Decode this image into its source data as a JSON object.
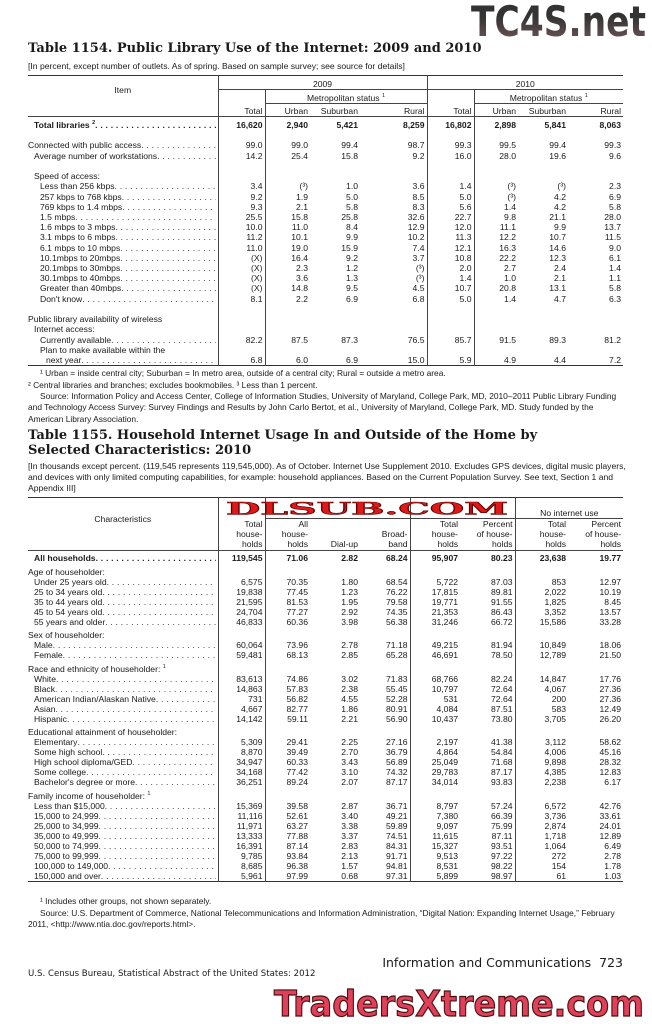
{
  "t1154": {
    "title": "Table 1154. Public Library Use of the Internet: 2009 and 2010",
    "note": "[In percent, except number of outlets. As of spring. Based on sample survey; see source for details]",
    "header": {
      "item": "Item",
      "y2009": "2009",
      "y2010": "2010",
      "metro": "Metropolitan status",
      "metro_sup": "1",
      "cols": [
        "Total",
        "Urban",
        "Suburban",
        "Rural",
        "Total",
        "Urban",
        "Suburban",
        "Rural"
      ]
    },
    "rows": [
      {
        "label": "Total libraries",
        "sup": "2",
        "bold": true,
        "indent": 1,
        "values": [
          "16,620",
          "2,940",
          "5,421",
          "8,259",
          "16,802",
          "2,898",
          "5,841",
          "8,063"
        ]
      },
      {
        "spacer": true
      },
      {
        "label": "Connected with public access",
        "indent": 0,
        "values": [
          "99.0",
          "99.0",
          "99.4",
          "98.7",
          "99.3",
          "99.5",
          "99.4",
          "99.3"
        ]
      },
      {
        "label": "Average number of workstations",
        "indent": 1,
        "values": [
          "14.2",
          "25.4",
          "15.8",
          "9.2",
          "16.0",
          "28.0",
          "19.6",
          "9.6"
        ]
      },
      {
        "spacer": true
      },
      {
        "label": "Speed of access:",
        "heading": true,
        "indent": 1
      },
      {
        "label": "Less than 256 kbps",
        "indent": 2,
        "values": [
          "3.4",
          "(³)",
          "1.0",
          "3.6",
          "1.4",
          "(³)",
          "(³)",
          "2.3"
        ]
      },
      {
        "label": "257 kbps to 768 kbps",
        "indent": 2,
        "values": [
          "9.2",
          "1.9",
          "5.0",
          "8.5",
          "5.0",
          "(³)",
          "4.2",
          "6.9"
        ]
      },
      {
        "label": "769 kbps to 1.4 mbps",
        "indent": 2,
        "values": [
          "9.3",
          "2.1",
          "5.8",
          "8.3",
          "5.6",
          "1.4",
          "4.2",
          "5.8"
        ]
      },
      {
        "label": "1.5 mbps",
        "indent": 2,
        "values": [
          "25.5",
          "15.8",
          "25.8",
          "32.6",
          "22.7",
          "9.8",
          "21.1",
          "28.0"
        ]
      },
      {
        "label": "1.6 mbps to 3 mbps",
        "indent": 2,
        "values": [
          "10.0",
          "11.0",
          "8.4",
          "12.9",
          "12.0",
          "11.1",
          "9.9",
          "13.7"
        ]
      },
      {
        "label": "3.1 mbps to 6 mbps",
        "indent": 2,
        "values": [
          "11.2",
          "10.1",
          "9.9",
          "10.2",
          "11.3",
          "12.2",
          "10.7",
          "11.5"
        ]
      },
      {
        "label": "6.1 mbps to 10 mbps",
        "indent": 2,
        "values": [
          "11.0",
          "19.0",
          "15.9",
          "7.4",
          "12.1",
          "16.3",
          "14.6",
          "9.0"
        ]
      },
      {
        "label": "10.1mbps to 20mbps",
        "indent": 2,
        "values": [
          "(X)",
          "16.4",
          "9.2",
          "3.7",
          "10.8",
          "22.2",
          "12.3",
          "6.1"
        ]
      },
      {
        "label": "20.1mbps to 30mbps",
        "indent": 2,
        "values": [
          "(X)",
          "2.3",
          "1.2",
          "(³)",
          "2.0",
          "2.7",
          "2.4",
          "1.4"
        ]
      },
      {
        "label": "30.1mbps to 40mbps",
        "indent": 2,
        "values": [
          "(X)",
          "3.6",
          "1.3",
          "(³)",
          "1.4",
          "1.0",
          "2.1",
          "1.1"
        ]
      },
      {
        "label": "Greater than 40mbps",
        "indent": 2,
        "values": [
          "(X)",
          "14.8",
          "9.5",
          "4.5",
          "10.7",
          "20.8",
          "13.1",
          "5.8"
        ]
      },
      {
        "label": "Don't know",
        "indent": 2,
        "values": [
          "8.1",
          "2.2",
          "6.9",
          "6.8",
          "5.0",
          "1.4",
          "4.7",
          "6.3"
        ]
      },
      {
        "spacer": true
      },
      {
        "label": "Public library availability of wireless",
        "heading": true,
        "indent": 0
      },
      {
        "label": "Internet access:",
        "heading": true,
        "indent": 1
      },
      {
        "label": "Currently available",
        "indent": 2,
        "values": [
          "82.2",
          "87.5",
          "87.3",
          "76.5",
          "85.7",
          "91.5",
          "89.3",
          "81.2"
        ]
      },
      {
        "label": "Plan to make available within the",
        "heading": true,
        "indent": 2
      },
      {
        "label": "next year",
        "indent": 3,
        "values": [
          "6.8",
          "6.0",
          "6.9",
          "15.0",
          "5.9",
          "4.9",
          "4.4",
          "7.2"
        ]
      }
    ],
    "footnotes": [
      "¹ Urban = inside  central city; Suburban = In metro area, outside of a central city; Rural = outside a metro area.",
      "² Central libraries and branches; excludes bookmobiles. ³ Less than 1 percent."
    ],
    "source": "Source: Information Policy and Access Center, College of Information Studies, University of Maryland, College Park, MD, 2010–2011 Public Library Funding and Technology Access Survey: Survey Findings and Results by John Carlo Bertot, et al., University of Maryland, College Park, MD. Study funded by the American Library Association."
  },
  "t1155": {
    "title_line1": "Table 1155. Household Internet Usage In and Outside of the Home by",
    "title_line2": "Selected Characteristics: 2010",
    "note": "[In thousands except percent. (119,545 represents 119,545,000). As of October. Internet Use Supplement 2010. Excludes GPS devices, digital music players, and devices with only limited computing capabilities, for example: household appliances. Based on the Current Population Survey. See text, Section 1 and Appendix III]",
    "header": {
      "characteristics": "Characteristics",
      "group3": "No internet use",
      "cols": [
        [
          "Total",
          "house-",
          "holds"
        ],
        [
          "All",
          "house-",
          "holds"
        ],
        [
          "Dial-up"
        ],
        [
          "Broad-",
          "band"
        ],
        [
          "Total",
          "house-",
          "holds"
        ],
        [
          "Percent",
          "of house-",
          "holds"
        ],
        [
          "Total",
          "house-",
          "holds"
        ],
        [
          "Percent",
          "of house-",
          "holds"
        ]
      ]
    },
    "rows": [
      {
        "label": "All households",
        "bold": true,
        "indent": 1,
        "values": [
          "119,545",
          "71.06",
          "2.82",
          "68.24",
          "95,907",
          "80.23",
          "23,638",
          "19.77"
        ]
      },
      {
        "spacer": true
      },
      {
        "label": "Age of householder:",
        "heading": true,
        "indent": 0
      },
      {
        "label": "Under 25 years old",
        "indent": 1,
        "values": [
          "6,575",
          "70.35",
          "1.80",
          "68.54",
          "5,722",
          "87.03",
          "853",
          "12.97"
        ]
      },
      {
        "label": "25 to 34 years old",
        "indent": 1,
        "values": [
          "19,838",
          "77.45",
          "1.23",
          "76.22",
          "17,815",
          "89.81",
          "2,022",
          "10.19"
        ]
      },
      {
        "label": "35 to 44 years old",
        "indent": 1,
        "values": [
          "21,595",
          "81.53",
          "1.95",
          "79.58",
          "19,771",
          "91.55",
          "1,825",
          "8.45"
        ]
      },
      {
        "label": "45 to 54 years old",
        "indent": 1,
        "values": [
          "24,704",
          "77.27",
          "2.92",
          "74.35",
          "21,353",
          "86.43",
          "3,352",
          "13.57"
        ]
      },
      {
        "label": "55 years and older",
        "indent": 1,
        "values": [
          "46,833",
          "60.36",
          "3.98",
          "56.38",
          "31,246",
          "66.72",
          "15,586",
          "33.28"
        ]
      },
      {
        "spacer": true
      },
      {
        "label": "Sex of householder:",
        "heading": true,
        "indent": 0
      },
      {
        "label": "Male",
        "indent": 1,
        "values": [
          "60,064",
          "73.96",
          "2.78",
          "71.18",
          "49,215",
          "81.94",
          "10,849",
          "18.06"
        ]
      },
      {
        "label": "Female",
        "indent": 1,
        "values": [
          "59,481",
          "68.13",
          "2.85",
          "65.28",
          "46,691",
          "78.50",
          "12,789",
          "21.50"
        ]
      },
      {
        "spacer": true
      },
      {
        "label": "Race and ethnicity of householder:",
        "sup": "1",
        "heading": true,
        "indent": 0
      },
      {
        "label": "White",
        "indent": 1,
        "values": [
          "83,613",
          "74.86",
          "3.02",
          "71.83",
          "68,766",
          "82.24",
          "14,847",
          "17.76"
        ]
      },
      {
        "label": "Black",
        "indent": 1,
        "values": [
          "14,863",
          "57.83",
          "2.38",
          "55.45",
          "10,797",
          "72.64",
          "4,067",
          "27.36"
        ]
      },
      {
        "label": "American Indian/Alaskan Native",
        "indent": 1,
        "values": [
          "731",
          "56.82",
          "4.55",
          "52.28",
          "531",
          "72.64",
          "200",
          "27.36"
        ]
      },
      {
        "label": "Asian",
        "indent": 1,
        "values": [
          "4,667",
          "82.77",
          "1.86",
          "80.91",
          "4,084",
          "87.51",
          "583",
          "12.49"
        ]
      },
      {
        "label": "Hispanic",
        "indent": 1,
        "values": [
          "14,142",
          "59.11",
          "2.21",
          "56.90",
          "10,437",
          "73.80",
          "3,705",
          "26.20"
        ]
      },
      {
        "spacer": true
      },
      {
        "label": "Educational attainment of householder:",
        "heading": true,
        "indent": 0
      },
      {
        "label": "Elementary",
        "indent": 1,
        "values": [
          "5,309",
          "29.41",
          "2.25",
          "27.16",
          "2,197",
          "41.38",
          "3,112",
          "58.62"
        ]
      },
      {
        "label": "Some high school",
        "indent": 1,
        "values": [
          "8,870",
          "39.49",
          "2.70",
          "36.79",
          "4,864",
          "54.84",
          "4,006",
          "45.16"
        ]
      },
      {
        "label": "High school diploma/GED",
        "indent": 1,
        "values": [
          "34,947",
          "60.33",
          "3.43",
          "56.89",
          "25,049",
          "71.68",
          "9,898",
          "28.32"
        ]
      },
      {
        "label": "Some college",
        "indent": 1,
        "values": [
          "34,168",
          "77.42",
          "3.10",
          "74.32",
          "29,783",
          "87.17",
          "4,385",
          "12.83"
        ]
      },
      {
        "label": "Bachelor's degree or more",
        "indent": 1,
        "values": [
          "36,251",
          "89.24",
          "2.07",
          "87.17",
          "34,014",
          "93.83",
          "2,238",
          "6.17"
        ]
      },
      {
        "spacer": true
      },
      {
        "label": "Family income of householder:",
        "sup": "1",
        "heading": true,
        "indent": 0
      },
      {
        "label": "Less than $15,000",
        "indent": 1,
        "values": [
          "15,369",
          "39.58",
          "2.87",
          "36.71",
          "8,797",
          "57.24",
          "6,572",
          "42.76"
        ]
      },
      {
        "label": "15,000 to 24,999",
        "indent": 1,
        "values": [
          "11,116",
          "52.61",
          "3.40",
          "49.21",
          "7,380",
          "66.39",
          "3,736",
          "33.61"
        ]
      },
      {
        "label": "25,000 to 34,999",
        "indent": 1,
        "values": [
          "11,971",
          "63.27",
          "3.38",
          "59.89",
          "9,097",
          "75.99",
          "2,874",
          "24.01"
        ]
      },
      {
        "label": "35,000 to 49,999",
        "indent": 1,
        "values": [
          "13,333",
          "77.88",
          "3.37",
          "74.51",
          "11,615",
          "87.11",
          "1,718",
          "12.89"
        ]
      },
      {
        "label": "50,000 to 74,999",
        "indent": 1,
        "values": [
          "16,391",
          "87.14",
          "2.83",
          "84.31",
          "15,327",
          "93.51",
          "1,064",
          "6.49"
        ]
      },
      {
        "label": "75,000 to 99,999",
        "indent": 1,
        "values": [
          "9,785",
          "93.84",
          "2.13",
          "91.71",
          "9,513",
          "97.22",
          "272",
          "2.78"
        ]
      },
      {
        "label": "100,000 to 149,000",
        "indent": 1,
        "values": [
          "8,685",
          "96.38",
          "1.57",
          "94.81",
          "8,531",
          "98.22",
          "154",
          "1.78"
        ]
      },
      {
        "label": "150,000 and over",
        "indent": 1,
        "values": [
          "5,961",
          "97.99",
          "0.68",
          "97.31",
          "5,899",
          "98.97",
          "61",
          "1.03"
        ]
      }
    ],
    "footnote": "¹ Includes other groups, not shown separately.",
    "source": "Source: U.S. Department of Commerce, National Telecommunications and Information Administration,  “Digital Nation: Expanding Internet Usage,” February 2011, <http://www.ntia.doc.gov/reports.html>."
  },
  "footer": {
    "section": "Information and Communications",
    "page": "723",
    "publication": "U.S. Census Bureau, Statistical Abstract of the United States: 2012"
  },
  "watermarks": {
    "top_right": "TC4S.net",
    "middle": "DLSUB.COM",
    "bottom": "TradersXtreme.com"
  },
  "colors": {
    "text": "#1a1a1a",
    "watermark_red": "#e01818",
    "watermark_pink": "#e0405a"
  }
}
